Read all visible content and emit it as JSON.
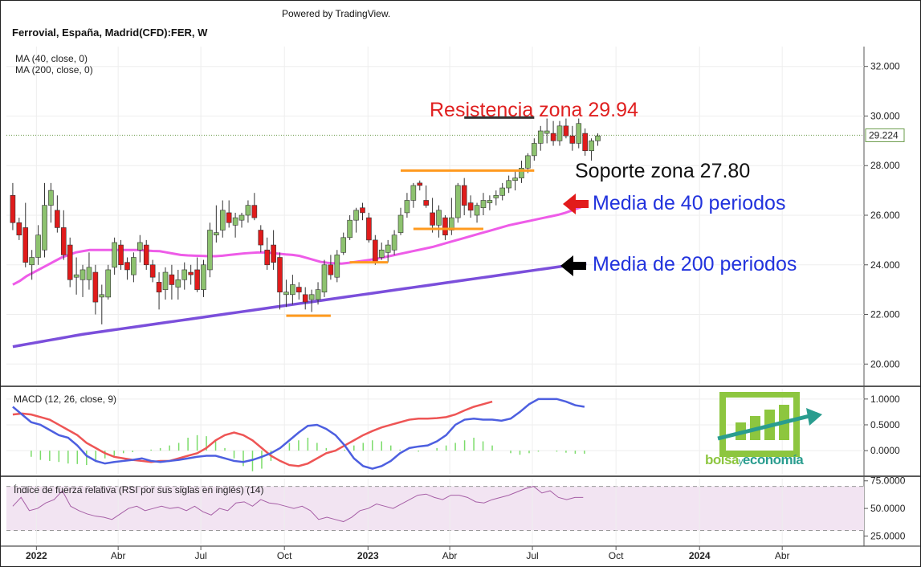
{
  "header": {
    "powered_by": "Powered by TradingView.",
    "symbol_title": "Ferrovial, España, Madrid(CFD):FER, W"
  },
  "legend": {
    "ma40": "MA (40, close, 0)",
    "ma200": "MA (200, close, 0)",
    "macd": "MACD (12, 26, close, 9)",
    "rsi": "Índice de fuerza relativa (RSI por sus siglas en inglés) (14)"
  },
  "annotations": {
    "resistance": "Resistencia zona 29.94",
    "support": "Soporte zona 27.80",
    "ma40_label": "Media de 40 periodos",
    "ma200_label": "Media de 200 periodos"
  },
  "logo": {
    "text_a": "bolsa",
    "text_y": "y",
    "text_b": "economía"
  },
  "colors": {
    "up": "#8dc26f",
    "down": "#e01b1b",
    "ma40": "#ee5ce8",
    "ma200": "#7b4fdb",
    "macd": "#4d5fe0",
    "signal": "#ee5555",
    "hist": "#7bdc6a",
    "rsi_line": "#a65fa6",
    "rsi_band": "#f2e4f2",
    "resistance_line": "#333333",
    "support_line": "#ff9a1f",
    "resistance_text": "#e02020",
    "ma_text": "#2233dd",
    "logo_green": "#8dc63f",
    "logo_teal": "#2a9d8f"
  },
  "axes": {
    "price_ticks": [
      "32.000",
      "30.000",
      "28.000",
      "26.000",
      "24.000",
      "22.000",
      "20.000"
    ],
    "last_price": "29.224",
    "macd_ticks": [
      "1.0000",
      "0.5000",
      "0.0000"
    ],
    "rsi_ticks": [
      "75.0000",
      "50.0000",
      "25.0000"
    ],
    "time_ticks": [
      "2022",
      "Abr",
      "Jul",
      "Oct",
      "2023",
      "Abr",
      "Jul",
      "Oct",
      "2024",
      "Abr"
    ]
  },
  "chart_data": [
    {
      "type": "candlestick",
      "title": "Ferrovial, España, Madrid(CFD):FER, W",
      "ylim": [
        19.2,
        32.8
      ],
      "time_range": [
        "2021-11-29",
        "2024-06-30"
      ],
      "time_ticks": [
        {
          "label": "2022",
          "date": "2022-01-01"
        },
        {
          "label": "Abr",
          "date": "2022-04-01"
        },
        {
          "label": "Jul",
          "date": "2022-07-01"
        },
        {
          "label": "Oct",
          "date": "2022-10-01"
        },
        {
          "label": "2023",
          "date": "2023-01-01"
        },
        {
          "label": "Abr",
          "date": "2023-04-01"
        },
        {
          "label": "Jul",
          "date": "2023-07-01"
        },
        {
          "label": "Oct",
          "date": "2023-10-01"
        },
        {
          "label": "2024",
          "date": "2024-01-01"
        },
        {
          "label": "Abr",
          "date": "2024-04-01"
        }
      ],
      "week_start": "2021-12-06",
      "candles_ohlc": [
        [
          26.8,
          27.3,
          25.4,
          25.7
        ],
        [
          25.7,
          25.9,
          25.0,
          25.2
        ],
        [
          25.5,
          26.5,
          23.9,
          24.1
        ],
        [
          24.0,
          24.6,
          23.4,
          24.3
        ],
        [
          24.3,
          25.6,
          24.0,
          25.2
        ],
        [
          24.6,
          27.3,
          24.3,
          26.4
        ],
        [
          26.4,
          27.3,
          25.7,
          27.0
        ],
        [
          26.2,
          26.8,
          25.3,
          25.5
        ],
        [
          25.5,
          26.2,
          24.2,
          24.4
        ],
        [
          24.8,
          25.1,
          23.1,
          23.4
        ],
        [
          23.5,
          24.3,
          22.8,
          23.6
        ],
        [
          23.4,
          24.0,
          22.7,
          23.8
        ],
        [
          23.4,
          24.5,
          23.0,
          23.9
        ],
        [
          23.7,
          24.0,
          22.0,
          22.5
        ],
        [
          22.7,
          23.2,
          21.6,
          22.8
        ],
        [
          22.7,
          24.0,
          22.6,
          23.8
        ],
        [
          23.9,
          25.1,
          23.6,
          24.9
        ],
        [
          24.8,
          25.0,
          23.8,
          24.0
        ],
        [
          24.1,
          24.3,
          23.4,
          23.8
        ],
        [
          23.6,
          24.5,
          23.3,
          24.3
        ],
        [
          24.6,
          25.2,
          24.1,
          24.9
        ],
        [
          24.8,
          25.0,
          23.8,
          24.0
        ],
        [
          24.0,
          24.2,
          23.3,
          23.5
        ],
        [
          23.3,
          23.7,
          22.2,
          22.9
        ],
        [
          23.0,
          23.9,
          22.6,
          23.7
        ],
        [
          23.6,
          24.0,
          22.6,
          23.2
        ],
        [
          23.1,
          23.8,
          22.6,
          23.4
        ],
        [
          23.4,
          24.1,
          23.0,
          23.8
        ],
        [
          23.7,
          24.0,
          23.2,
          23.6
        ],
        [
          23.8,
          24.3,
          22.9,
          23.0
        ],
        [
          23.0,
          24.2,
          22.7,
          24.0
        ],
        [
          23.8,
          25.7,
          23.5,
          25.4
        ],
        [
          25.2,
          26.4,
          24.9,
          25.3
        ],
        [
          25.4,
          26.6,
          25.1,
          26.2
        ],
        [
          26.1,
          26.6,
          25.5,
          25.7
        ],
        [
          25.6,
          26.1,
          25.1,
          25.9
        ],
        [
          25.8,
          26.1,
          25.5,
          26.0
        ],
        [
          26.0,
          26.6,
          25.7,
          26.4
        ],
        [
          26.4,
          26.9,
          25.8,
          25.9
        ],
        [
          25.4,
          25.6,
          24.5,
          24.8
        ],
        [
          24.6,
          25.1,
          23.8,
          24.0
        ],
        [
          24.8,
          25.4,
          23.8,
          24.1
        ],
        [
          24.3,
          24.5,
          22.2,
          22.9
        ],
        [
          22.8,
          23.4,
          22.3,
          22.9
        ],
        [
          22.8,
          23.6,
          22.4,
          23.2
        ],
        [
          23.1,
          23.3,
          22.6,
          22.9
        ],
        [
          22.8,
          23.1,
          22.2,
          22.5
        ],
        [
          22.6,
          23.0,
          22.1,
          22.8
        ],
        [
          22.6,
          23.3,
          22.4,
          23.0
        ],
        [
          22.9,
          24.2,
          22.7,
          24.0
        ],
        [
          24.0,
          24.4,
          23.4,
          23.6
        ],
        [
          23.5,
          24.6,
          23.3,
          24.4
        ],
        [
          24.5,
          25.3,
          24.4,
          25.1
        ],
        [
          25.1,
          26.0,
          25.0,
          25.8
        ],
        [
          25.8,
          26.3,
          25.3,
          26.2
        ],
        [
          26.3,
          26.5,
          25.8,
          26.1
        ],
        [
          25.9,
          26.1,
          24.9,
          25.0
        ],
        [
          25.0,
          25.2,
          24.0,
          24.1
        ],
        [
          24.3,
          24.9,
          24.2,
          24.6
        ],
        [
          24.5,
          25.0,
          24.1,
          24.8
        ],
        [
          24.6,
          25.4,
          24.4,
          25.2
        ],
        [
          25.3,
          26.3,
          25.2,
          26.0
        ],
        [
          26.1,
          26.9,
          25.9,
          26.6
        ],
        [
          26.6,
          27.3,
          26.3,
          27.2
        ],
        [
          27.3,
          27.4,
          27.0,
          27.2
        ],
        [
          26.6,
          27.2,
          26.3,
          26.4
        ],
        [
          26.1,
          26.7,
          25.3,
          25.6
        ],
        [
          25.6,
          26.4,
          25.1,
          26.2
        ],
        [
          25.9,
          26.0,
          25.0,
          25.2
        ],
        [
          25.4,
          26.7,
          25.2,
          25.9
        ],
        [
          25.9,
          27.3,
          25.7,
          27.2
        ],
        [
          27.2,
          27.5,
          26.0,
          26.4
        ],
        [
          26.5,
          26.8,
          25.9,
          26.2
        ],
        [
          26.0,
          26.5,
          25.7,
          26.4
        ],
        [
          26.3,
          26.9,
          26.0,
          26.6
        ],
        [
          26.5,
          26.8,
          26.2,
          26.6
        ],
        [
          26.7,
          27.0,
          26.4,
          26.8
        ],
        [
          26.8,
          27.3,
          26.6,
          27.1
        ],
        [
          27.1,
          27.6,
          26.9,
          27.4
        ],
        [
          27.4,
          27.8,
          27.0,
          27.5
        ],
        [
          27.5,
          28.2,
          27.3,
          27.9
        ],
        [
          27.9,
          28.5,
          27.7,
          28.4
        ],
        [
          28.4,
          29.1,
          28.2,
          28.9
        ],
        [
          28.9,
          29.6,
          28.6,
          29.4
        ],
        [
          29.3,
          29.9,
          28.9,
          29.4
        ],
        [
          29.3,
          29.8,
          28.8,
          29.0
        ],
        [
          29.0,
          29.8,
          28.8,
          29.6
        ],
        [
          29.6,
          29.9,
          29.1,
          29.2
        ],
        [
          29.2,
          29.6,
          28.6,
          28.9
        ],
        [
          28.9,
          29.9,
          28.7,
          29.7
        ],
        [
          29.3,
          29.5,
          28.4,
          28.6
        ],
        [
          28.6,
          29.1,
          28.2,
          29.0
        ],
        [
          29.0,
          29.3,
          28.8,
          29.2
        ]
      ],
      "ma40_weekly": [
        23.2,
        23.35,
        23.55,
        23.7,
        23.85,
        24.0,
        24.15,
        24.3,
        24.4,
        24.5,
        24.55,
        24.6,
        24.6,
        24.6,
        24.6,
        24.6,
        24.6,
        24.6,
        24.6,
        24.58,
        24.56,
        24.55,
        24.5,
        24.45,
        24.4,
        24.38,
        24.37,
        24.36,
        24.35,
        24.35,
        24.37,
        24.4,
        24.43,
        24.46,
        24.48,
        24.5,
        24.5,
        24.48,
        24.45,
        24.42,
        24.4,
        24.36,
        24.28,
        24.2,
        24.12,
        24.08,
        24.06,
        24.05,
        24.08,
        24.12,
        24.16,
        24.2,
        24.25,
        24.3,
        24.36,
        24.42,
        24.48,
        24.54,
        24.6,
        24.66,
        24.72,
        24.8,
        24.88,
        24.96,
        25.04,
        25.12,
        25.2,
        25.28,
        25.36,
        25.44,
        25.52,
        25.6,
        25.66,
        25.72,
        25.78,
        25.84,
        25.9,
        25.96,
        26.02,
        26.1,
        26.2,
        26.3,
        26.42
      ],
      "ma200_weekly": [
        20.7,
        20.75,
        20.8,
        20.85,
        20.9,
        20.95,
        21.0,
        21.05,
        21.1,
        21.15,
        21.2,
        21.24,
        21.28,
        21.32,
        21.36,
        21.4,
        21.44,
        21.48,
        21.52,
        21.56,
        21.6,
        21.64,
        21.68,
        21.72,
        21.76,
        21.8,
        21.84,
        21.88,
        21.92,
        21.96,
        22.0,
        22.04,
        22.08,
        22.12,
        22.16,
        22.2,
        22.24,
        22.28,
        22.32,
        22.36,
        22.4,
        22.44,
        22.48,
        22.52,
        22.56,
        22.6,
        22.64,
        22.68,
        22.72,
        22.76,
        22.8,
        22.84,
        22.88,
        22.92,
        22.96,
        23.0,
        23.04,
        23.08,
        23.12,
        23.16,
        23.2,
        23.24,
        23.28,
        23.32,
        23.36,
        23.4,
        23.44,
        23.48,
        23.52,
        23.56,
        23.6,
        23.64,
        23.68,
        23.72,
        23.76,
        23.8,
        23.84,
        23.88,
        23.92,
        23.96,
        24.0,
        24.02,
        24.04
      ],
      "resistance_level": 29.94,
      "support_level": 27.8,
      "support_segments": [
        {
          "from": "2022-10-03",
          "to": "2022-11-21",
          "level": 21.95
        },
        {
          "from": "2022-12-12",
          "to": "2023-01-23",
          "level": 24.1
        },
        {
          "from": "2023-02-20",
          "to": "2023-05-08",
          "level": 25.45
        },
        {
          "from": "2023-02-06",
          "to": "2023-07-03",
          "level": 27.8
        }
      ],
      "resistance_segment": {
        "from": "2023-04-17",
        "to": "2023-07-03",
        "level": 29.94
      },
      "last_price": 29.224
    },
    {
      "type": "line",
      "title": "MACD (12, 26, close, 9)",
      "ylim": [
        -0.45,
        1.2
      ],
      "macd": [
        0.85,
        0.7,
        0.55,
        0.5,
        0.4,
        0.3,
        0.25,
        0.1,
        -0.1,
        -0.2,
        -0.25,
        -0.22,
        -0.2,
        -0.18,
        -0.15,
        -0.2,
        -0.22,
        -0.2,
        -0.18,
        -0.15,
        -0.12,
        -0.1,
        -0.1,
        -0.15,
        -0.2,
        -0.22,
        -0.18,
        -0.12,
        -0.05,
        0.05,
        0.2,
        0.35,
        0.48,
        0.5,
        0.42,
        0.3,
        0.1,
        -0.15,
        -0.3,
        -0.35,
        -0.3,
        -0.2,
        -0.05,
        0.05,
        0.08,
        0.1,
        0.18,
        0.3,
        0.5,
        0.6,
        0.62,
        0.6,
        0.6,
        0.58,
        0.62,
        0.75,
        0.9,
        1.0,
        1.0,
        1.0,
        0.95,
        0.88,
        0.85
      ],
      "signal": [
        0.7,
        0.72,
        0.7,
        0.65,
        0.6,
        0.5,
        0.4,
        0.3,
        0.15,
        0.05,
        -0.05,
        -0.12,
        -0.15,
        -0.18,
        -0.2,
        -0.22,
        -0.2,
        -0.2,
        -0.15,
        -0.1,
        -0.05,
        0.05,
        0.2,
        0.3,
        0.35,
        0.3,
        0.2,
        0.05,
        -0.1,
        -0.2,
        -0.28,
        -0.3,
        -0.25,
        -0.15,
        -0.05,
        0.0,
        0.1,
        0.2,
        0.3,
        0.38,
        0.45,
        0.5,
        0.55,
        0.6,
        0.62,
        0.62,
        0.63,
        0.65,
        0.7,
        0.78,
        0.85,
        0.9,
        0.95
      ],
      "hist": [
        0.0,
        0.0,
        -0.12,
        -0.18,
        -0.2,
        -0.22,
        -0.25,
        -0.26,
        -0.28,
        -0.22,
        -0.15,
        -0.1,
        -0.05,
        -0.03,
        0.0,
        0.02,
        0.05,
        0.1,
        0.15,
        0.25,
        0.3,
        0.28,
        0.2,
        0.05,
        -0.15,
        -0.3,
        -0.4,
        -0.35,
        -0.2,
        0.0,
        0.15,
        0.2,
        0.25,
        0.15,
        0.05,
        -0.02,
        0.02,
        0.1,
        0.15,
        0.2,
        0.18,
        0.1,
        0.02,
        0.0,
        -0.02,
        0.0,
        0.05,
        0.1,
        0.15,
        0.2,
        0.25,
        0.18,
        0.1,
        0.0,
        -0.05,
        -0.08,
        -0.05,
        -0.02,
        0.0,
        -0.02,
        -0.04,
        -0.06,
        -0.06
      ]
    },
    {
      "type": "line",
      "title": "Índice de fuerza relativa (RSI por sus siglas en inglés) (14)",
      "ylim": [
        18,
        77
      ],
      "band": [
        30,
        70
      ],
      "values": [
        52,
        60,
        48,
        50,
        55,
        58,
        66,
        52,
        48,
        45,
        43,
        42,
        40,
        45,
        50,
        52,
        48,
        50,
        52,
        50,
        51,
        48,
        52,
        47,
        44,
        50,
        48,
        55,
        56,
        52,
        58,
        55,
        54,
        52,
        50,
        52,
        48,
        40,
        42,
        40,
        38,
        42,
        48,
        50,
        54,
        52,
        50,
        54,
        58,
        62,
        63,
        60,
        58,
        62,
        62,
        60,
        56,
        55,
        58,
        60,
        62,
        65,
        68,
        70,
        64,
        66,
        60,
        58,
        60,
        60
      ]
    }
  ]
}
